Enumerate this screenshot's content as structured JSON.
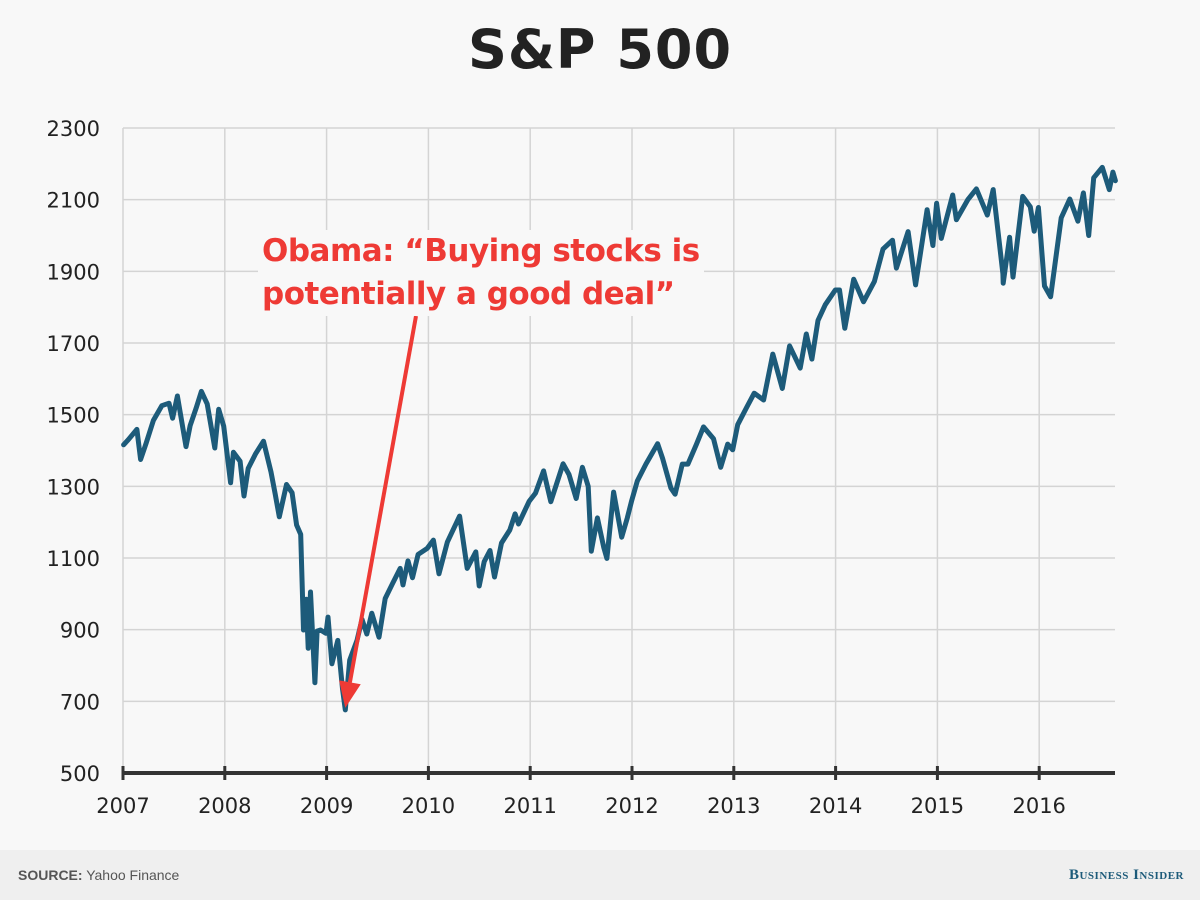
{
  "chart_data": {
    "type": "line",
    "title": "S&P 500",
    "xlabel": "",
    "ylabel": "",
    "xlim": [
      "2007-01-01",
      "2016-10-01"
    ],
    "ylim": [
      500,
      2300
    ],
    "yticks": [
      500,
      700,
      900,
      1100,
      1300,
      1500,
      1700,
      1900,
      2100,
      2300
    ],
    "xticks": [
      "2007",
      "2008",
      "2009",
      "2010",
      "2011",
      "2012",
      "2013",
      "2014",
      "2015",
      "2016"
    ],
    "grid": true,
    "line_color": "#1d5b7a",
    "annotation": {
      "text_line1": "Obama: “Buying stocks is",
      "text_line2": "potentially a good deal”",
      "target_date": "2009-03-09",
      "target_value": 676,
      "color": "#ee3a35"
    },
    "series": [
      {
        "points": [
          [
            "2007-01-03",
            1416
          ],
          [
            "2007-01-20",
            1430
          ],
          [
            "2007-02-20",
            1459
          ],
          [
            "2007-03-05",
            1375
          ],
          [
            "2007-03-25",
            1420
          ],
          [
            "2007-04-20",
            1484
          ],
          [
            "2007-05-20",
            1525
          ],
          [
            "2007-06-15",
            1532
          ],
          [
            "2007-06-28",
            1490
          ],
          [
            "2007-07-15",
            1552
          ],
          [
            "2007-08-15",
            1411
          ],
          [
            "2007-08-30",
            1470
          ],
          [
            "2007-09-20",
            1518
          ],
          [
            "2007-10-09",
            1565
          ],
          [
            "2007-10-30",
            1530
          ],
          [
            "2007-11-26",
            1407
          ],
          [
            "2007-12-10",
            1515
          ],
          [
            "2007-12-28",
            1468
          ],
          [
            "2008-01-22",
            1310
          ],
          [
            "2008-02-01",
            1395
          ],
          [
            "2008-02-25",
            1370
          ],
          [
            "2008-03-10",
            1273
          ],
          [
            "2008-03-25",
            1350
          ],
          [
            "2008-04-20",
            1390
          ],
          [
            "2008-05-19",
            1426
          ],
          [
            "2008-06-15",
            1340
          ],
          [
            "2008-06-30",
            1280
          ],
          [
            "2008-07-15",
            1215
          ],
          [
            "2008-08-10",
            1305
          ],
          [
            "2008-08-30",
            1282
          ],
          [
            "2008-09-15",
            1192
          ],
          [
            "2008-09-30",
            1166
          ],
          [
            "2008-10-10",
            899
          ],
          [
            "2008-10-20",
            985
          ],
          [
            "2008-10-27",
            848
          ],
          [
            "2008-11-04",
            1005
          ],
          [
            "2008-11-20",
            752
          ],
          [
            "2008-11-28",
            896
          ],
          [
            "2008-12-10",
            899
          ],
          [
            "2008-12-30",
            890
          ],
          [
            "2009-01-06",
            935
          ],
          [
            "2009-01-20",
            805
          ],
          [
            "2009-02-10",
            870
          ],
          [
            "2009-02-27",
            735
          ],
          [
            "2009-03-09",
            676
          ],
          [
            "2009-03-25",
            815
          ],
          [
            "2009-04-20",
            870
          ],
          [
            "2009-05-08",
            929
          ],
          [
            "2009-05-25",
            888
          ],
          [
            "2009-06-12",
            946
          ],
          [
            "2009-07-08",
            879
          ],
          [
            "2009-07-30",
            987
          ],
          [
            "2009-08-25",
            1028
          ],
          [
            "2009-09-22",
            1071
          ],
          [
            "2009-10-02",
            1025
          ],
          [
            "2009-10-20",
            1092
          ],
          [
            "2009-11-05",
            1045
          ],
          [
            "2009-11-25",
            1110
          ],
          [
            "2009-12-28",
            1127
          ],
          [
            "2010-01-19",
            1150
          ],
          [
            "2010-02-08",
            1056
          ],
          [
            "2010-03-10",
            1145
          ],
          [
            "2010-04-23",
            1217
          ],
          [
            "2010-05-20",
            1071
          ],
          [
            "2010-06-20",
            1117
          ],
          [
            "2010-07-02",
            1022
          ],
          [
            "2010-07-20",
            1090
          ],
          [
            "2010-08-10",
            1121
          ],
          [
            "2010-08-26",
            1047
          ],
          [
            "2010-09-20",
            1142
          ],
          [
            "2010-10-20",
            1178
          ],
          [
            "2010-11-08",
            1223
          ],
          [
            "2010-11-20",
            1195
          ],
          [
            "2010-12-28",
            1258
          ],
          [
            "2011-01-20",
            1281
          ],
          [
            "2011-02-18",
            1343
          ],
          [
            "2011-03-16",
            1257
          ],
          [
            "2011-04-29",
            1363
          ],
          [
            "2011-05-20",
            1333
          ],
          [
            "2011-06-15",
            1266
          ],
          [
            "2011-07-07",
            1353
          ],
          [
            "2011-07-28",
            1300
          ],
          [
            "2011-08-08",
            1119
          ],
          [
            "2011-08-30",
            1212
          ],
          [
            "2011-09-22",
            1129
          ],
          [
            "2011-10-03",
            1099
          ],
          [
            "2011-10-27",
            1284
          ],
          [
            "2011-11-25",
            1158
          ],
          [
            "2011-12-15",
            1212
          ],
          [
            "2011-12-30",
            1257
          ],
          [
            "2012-01-20",
            1315
          ],
          [
            "2012-02-20",
            1362
          ],
          [
            "2012-04-02",
            1419
          ],
          [
            "2012-04-20",
            1378
          ],
          [
            "2012-05-20",
            1295
          ],
          [
            "2012-06-04",
            1278
          ],
          [
            "2012-06-30",
            1362
          ],
          [
            "2012-07-20",
            1362
          ],
          [
            "2012-08-20",
            1418
          ],
          [
            "2012-09-14",
            1466
          ],
          [
            "2012-10-20",
            1433
          ],
          [
            "2012-11-15",
            1353
          ],
          [
            "2012-12-10",
            1418
          ],
          [
            "2012-12-28",
            1402
          ],
          [
            "2013-01-15",
            1472
          ],
          [
            "2013-02-15",
            1519
          ],
          [
            "2013-03-15",
            1560
          ],
          [
            "2013-04-18",
            1541
          ],
          [
            "2013-05-21",
            1669
          ],
          [
            "2013-06-24",
            1573
          ],
          [
            "2013-07-20",
            1692
          ],
          [
            "2013-08-27",
            1630
          ],
          [
            "2013-09-18",
            1725
          ],
          [
            "2013-10-08",
            1655
          ],
          [
            "2013-10-30",
            1763
          ],
          [
            "2013-11-25",
            1807
          ],
          [
            "2013-12-31",
            1848
          ],
          [
            "2014-01-15",
            1848
          ],
          [
            "2014-02-03",
            1741
          ],
          [
            "2014-03-07",
            1878
          ],
          [
            "2014-04-11",
            1815
          ],
          [
            "2014-05-20",
            1872
          ],
          [
            "2014-06-20",
            1962
          ],
          [
            "2014-07-24",
            1987
          ],
          [
            "2014-08-07",
            1909
          ],
          [
            "2014-09-18",
            2011
          ],
          [
            "2014-10-15",
            1862
          ],
          [
            "2014-11-25",
            2072
          ],
          [
            "2014-12-16",
            1972
          ],
          [
            "2014-12-29",
            2090
          ],
          [
            "2015-01-15",
            1992
          ],
          [
            "2015-02-25",
            2113
          ],
          [
            "2015-03-10",
            2044
          ],
          [
            "2015-04-20",
            2100
          ],
          [
            "2015-05-21",
            2130
          ],
          [
            "2015-06-29",
            2057
          ],
          [
            "2015-07-20",
            2128
          ],
          [
            "2015-08-24",
            1893
          ],
          [
            "2015-08-25",
            1867
          ],
          [
            "2015-09-17",
            1995
          ],
          [
            "2015-09-29",
            1884
          ],
          [
            "2015-11-03",
            2109
          ],
          [
            "2015-11-30",
            2080
          ],
          [
            "2015-12-14",
            2012
          ],
          [
            "2015-12-29",
            2078
          ],
          [
            "2016-01-20",
            1859
          ],
          [
            "2016-02-11",
            1829
          ],
          [
            "2016-03-20",
            2049
          ],
          [
            "2016-04-20",
            2102
          ],
          [
            "2016-05-19",
            2040
          ],
          [
            "2016-06-08",
            2119
          ],
          [
            "2016-06-27",
            2000
          ],
          [
            "2016-07-15",
            2161
          ],
          [
            "2016-08-15",
            2190
          ],
          [
            "2016-09-09",
            2128
          ],
          [
            "2016-09-22",
            2177
          ],
          [
            "2016-10-01",
            2153
          ]
        ]
      }
    ]
  },
  "footer": {
    "source_label": "SOURCE:",
    "source_value": "Yahoo Finance",
    "brand": "Business Insider"
  }
}
